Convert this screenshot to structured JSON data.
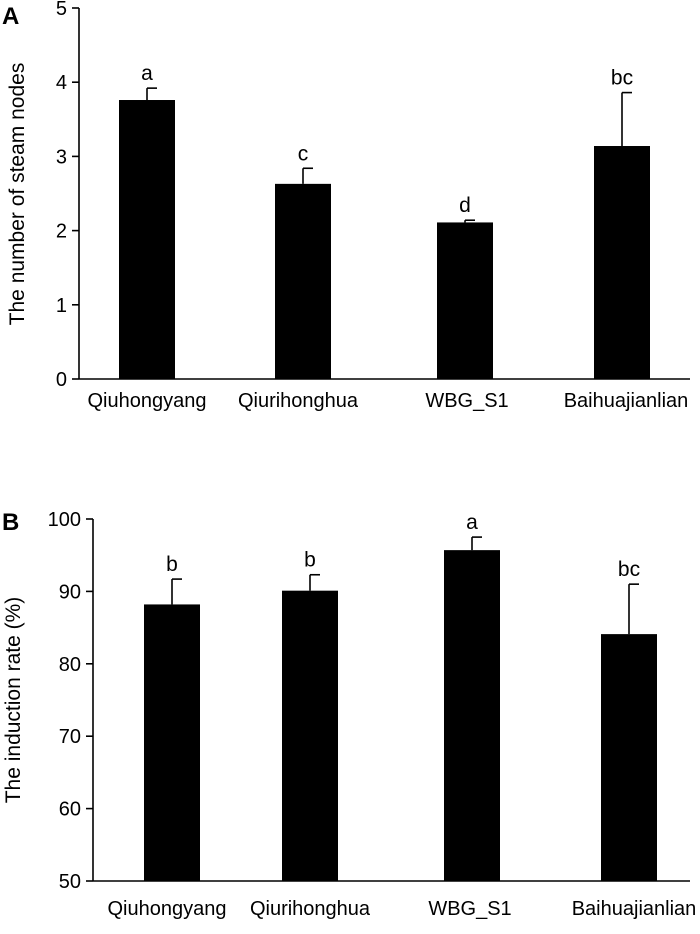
{
  "chart_data": [
    {
      "panel_label": "A",
      "type": "bar",
      "categories": [
        "Qiuhongyang",
        "Qiurihonghua",
        "WBG_S1",
        "Baihuajianlian"
      ],
      "values": [
        3.76,
        2.63,
        2.11,
        3.14
      ],
      "errors": [
        0.16,
        0.21,
        0.03,
        0.72
      ],
      "significance": [
        "a",
        "c",
        "d",
        "bc"
      ],
      "xlabel": "",
      "ylabel": "The number of steam nodes",
      "ylim": [
        0,
        5
      ],
      "yticks": [
        0,
        1,
        2,
        3,
        4,
        5
      ],
      "grid": false,
      "color": "#000000"
    },
    {
      "panel_label": "B",
      "type": "bar",
      "categories": [
        "Qiuhongyang",
        "Qiurihonghua",
        "WBG_S1",
        "Baihuajianlian"
      ],
      "values": [
        88.2,
        90.1,
        95.7,
        84.1
      ],
      "errors": [
        3.5,
        2.2,
        1.8,
        6.9
      ],
      "significance": [
        "b",
        "b",
        "a",
        "bc"
      ],
      "xlabel": "",
      "ylabel": "The induction rate (%)",
      "ylim": [
        50,
        100
      ],
      "yticks": [
        50,
        60,
        70,
        80,
        90,
        100
      ],
      "grid": false,
      "color": "#000000"
    }
  ]
}
